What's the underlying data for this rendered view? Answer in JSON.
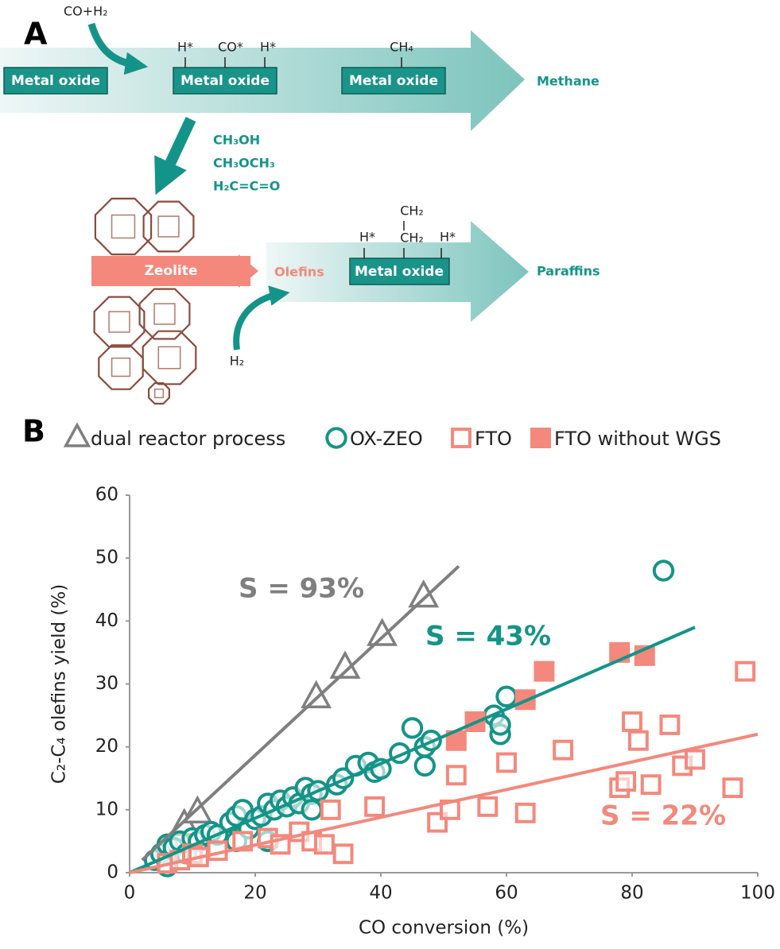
{
  "diagram": {
    "label": "A",
    "feed": "CO+H₂",
    "boxes": [
      "Metal oxide",
      "Metal oxide",
      "Metal oxide",
      "Metal oxide"
    ],
    "surface_1": [
      "H*",
      "CO*",
      "H*"
    ],
    "surface_2": [
      "CH₄"
    ],
    "surface_3": [
      "H*",
      "CH₂",
      "H*"
    ],
    "surface_3_top": "CH₂",
    "product_1": "Methane",
    "intermediates": [
      "CH₃OH",
      "CH₃OCH₃",
      "H₂C=C=O"
    ],
    "zeolite": "Zeolite",
    "olefins": "Olefins",
    "product_2": "Paraffins",
    "hydrogen": "H₂"
  },
  "chart_data": {
    "type": "scatter",
    "label": "B",
    "xlabel": "CO conversion (%)",
    "ylabel": "C₂-C₄ olefins yield (%)",
    "xlim": [
      0,
      100
    ],
    "xticks": [
      0,
      20,
      40,
      60,
      80,
      100
    ],
    "ylim": [
      0,
      60
    ],
    "yticks": [
      0,
      10,
      20,
      30,
      40,
      50,
      60
    ],
    "grid": false,
    "series": [
      {
        "name": "dual reactor process",
        "color": "#7f7f7f",
        "marker": "triangle",
        "x": [
          8.7,
          10.8,
          29.7,
          34.3,
          40.2,
          46.8
        ],
        "values": [
          7.5,
          9.5,
          27.8,
          32.5,
          37.7,
          43.8
        ]
      },
      {
        "name": "OX-ZEO",
        "color": "#149488",
        "marker": "circle",
        "x": [
          4,
          5,
          6,
          6,
          7,
          8,
          9,
          10,
          11,
          12,
          13,
          14,
          16,
          17,
          17,
          18,
          19,
          20,
          21,
          22,
          22,
          23,
          24,
          25,
          26,
          27,
          28,
          29,
          29,
          30,
          33,
          34,
          36,
          38,
          39,
          40,
          43,
          45,
          47,
          47,
          48,
          58,
          59,
          59,
          60,
          85
        ],
        "values": [
          2,
          3,
          4.5,
          1,
          4,
          5,
          3,
          5.5,
          5,
          6,
          6.5,
          6,
          8,
          9,
          5,
          10,
          7,
          8.5,
          9,
          11,
          5,
          10,
          11.5,
          10.5,
          12,
          11,
          13.5,
          12.5,
          10,
          13,
          14,
          15,
          17,
          17.5,
          16,
          16.5,
          19,
          23,
          20,
          17,
          21,
          25,
          22,
          23.5,
          28,
          48
        ]
      },
      {
        "name": "FTO",
        "color": "#f4887c",
        "marker": "square-open",
        "x": [
          6,
          8,
          10,
          11,
          14,
          18,
          22,
          24,
          27,
          29,
          31,
          32,
          34,
          39,
          49,
          51,
          52,
          57,
          60,
          63,
          69,
          78,
          79,
          80,
          81,
          83,
          86,
          88,
          90,
          96,
          98
        ],
        "values": [
          1.5,
          2,
          3,
          2.5,
          3.5,
          5,
          5.5,
          4.5,
          6.5,
          5,
          4.5,
          10,
          3,
          10.5,
          8,
          10,
          15.5,
          10.5,
          17.5,
          9.5,
          19.5,
          13.5,
          14.5,
          24,
          21,
          14,
          23.5,
          17,
          18,
          13.5,
          32
        ]
      },
      {
        "name": "FTO without WGS",
        "color": "#f4887c",
        "marker": "square-filled",
        "x": [
          52,
          55,
          63,
          66,
          78,
          82
        ],
        "values": [
          21,
          24,
          27.5,
          32,
          35,
          34.5
        ]
      }
    ],
    "fit_lines": [
      {
        "label": "S = 93%",
        "color": "#7f7f7f",
        "x": [
          2,
          52.4
        ],
        "values": [
          2,
          48.7
        ]
      },
      {
        "label": "S = 43%",
        "color": "#149488",
        "x": [
          0,
          90
        ],
        "values": [
          0,
          39
        ]
      },
      {
        "label": "S = 22%",
        "color": "#f4887c",
        "x": [
          0,
          100
        ],
        "values": [
          0,
          22
        ]
      }
    ]
  }
}
